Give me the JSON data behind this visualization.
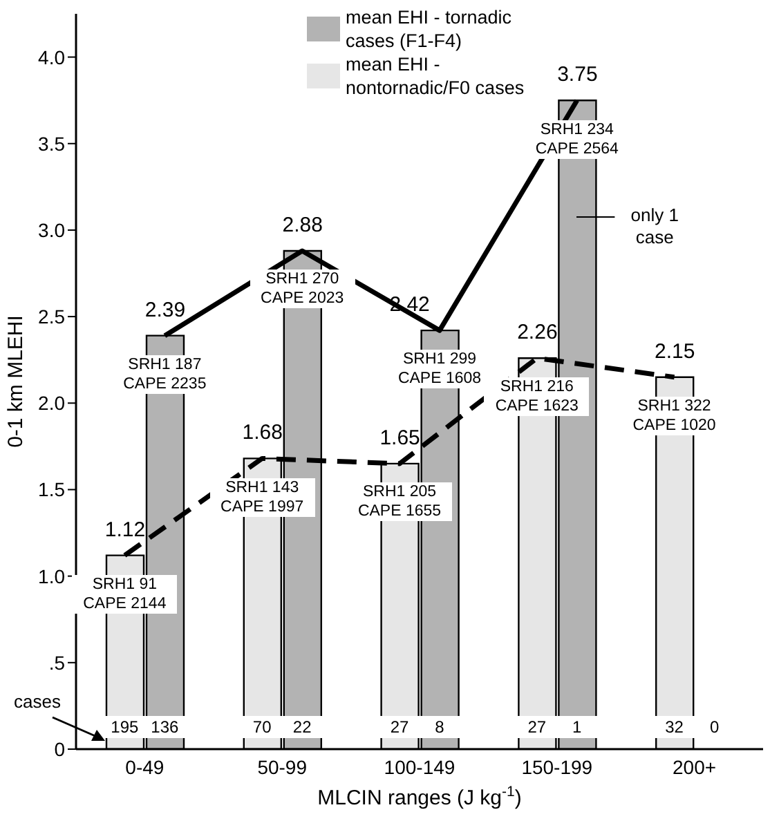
{
  "chart_data": {
    "type": "bar",
    "xlabel": "MLCIN ranges (J kg$^{-1}$)",
    "ylabel": "0-1 km MLEHI",
    "categories": [
      "0-49",
      "50-99",
      "100-149",
      "150-199",
      "200+"
    ],
    "series": [
      {
        "name": "mean EHI - tornadic cases (F1-F4)",
        "type": "bar",
        "color": "#b3b3b3",
        "values": [
          2.39,
          2.88,
          2.42,
          3.75,
          null
        ],
        "value_labels": [
          "2.39",
          "2.88",
          "2.42",
          "3.75",
          null
        ]
      },
      {
        "name": "mean EHI - nontornadic/F0 cases",
        "type": "bar",
        "color": "#e6e6e6",
        "values": [
          1.12,
          1.68,
          1.65,
          2.26,
          2.15
        ],
        "value_labels": [
          "1.12",
          "1.68",
          "1.65",
          "2.26",
          "2.15"
        ]
      },
      {
        "type": "line",
        "color": "#000000",
        "line_style": "solid",
        "values": [
          2.39,
          2.88,
          2.42,
          3.75,
          null
        ]
      },
      {
        "type": "line",
        "color": "#000000",
        "line_style": "dashed",
        "values": [
          1.12,
          1.68,
          1.65,
          2.26,
          2.15
        ]
      }
    ],
    "ylim": [
      0,
      4.25
    ],
    "yticks": [
      0,
      {
        "value": 0.5,
        "label": ".5"
      },
      {
        "value": 1,
        "label": "1.0"
      },
      {
        "value": 1.5,
        "label": "1.5"
      },
      {
        "value": 2,
        "label": "2.0"
      },
      {
        "value": 2.5,
        "label": "2.5"
      },
      {
        "value": 3,
        "label": "3.0"
      },
      {
        "value": 3.5,
        "label": "3.5"
      },
      {
        "value": 4,
        "label": "4.0"
      }
    ],
    "grid": false,
    "legend": "top",
    "annotations": [
      {
        "text": "SRH1 91\nCAPE 2144",
        "x": "0-49",
        "y": 1.12
      },
      {
        "text": "SRH1 187\nCAPE 2235",
        "x": "0-49",
        "y": 2.39
      },
      {
        "text": "SRH1 143\nCAPE 1997",
        "x": "50-99",
        "y": 1.68
      },
      {
        "text": "SRH1 270\nCAPE 2023",
        "x": "50-99",
        "y": 2.88
      },
      {
        "text": "SRH1 205\nCAPE 1655",
        "x": "100-149",
        "y": 1.65
      },
      {
        "text": "SRH1 299\nCAPE 1608",
        "x": "100-149",
        "y": 2.42
      },
      {
        "text": "SRH1 216\nCAPE 1623",
        "x": "150-199",
        "y": 2.26
      },
      {
        "text": "SRH1 234\nCAPE 2564",
        "x": "150-199",
        "y": 3.75
      },
      {
        "text": "SRH1 322\nCAPE 1020",
        "x": "200+",
        "y": 2.15
      },
      {
        "text": "195",
        "x": "0-49",
        "y": 0
      },
      {
        "text": "136",
        "x": "0-49",
        "y": 0
      },
      {
        "text": "70",
        "x": "50-99",
        "y": 0
      },
      {
        "text": "22",
        "x": "50-99",
        "y": 0
      },
      {
        "text": "27",
        "x": "100-149",
        "y": 0
      },
      {
        "text": "8",
        "x": "100-149",
        "y": 0
      },
      {
        "text": "27",
        "x": "150-199",
        "y": 0
      },
      {
        "text": "1",
        "x": "150-199",
        "y": 0
      },
      {
        "text": "32",
        "x": "200+",
        "y": 0
      },
      {
        "text": "0",
        "x": "200+",
        "y": 0
      },
      "cases",
      "only 1 case"
    ]
  }
}
